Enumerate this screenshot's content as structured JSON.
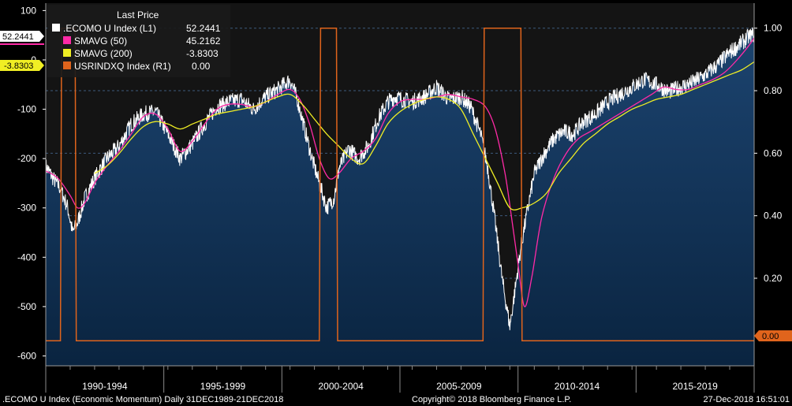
{
  "chart_data": {
    "type": "line",
    "title": "Last Price",
    "xlabel": "",
    "ylabel": "",
    "x_categories": [
      "1990-1994",
      "1995-1999",
      "2000-2004",
      "2005-2009",
      "2010-2014",
      "2015-2019"
    ],
    "x_range": [
      1990.0,
      2019.0
    ],
    "ylim_left": [
      -620,
      115
    ],
    "yticks_left": [
      100,
      0,
      -100,
      -200,
      -300,
      -400,
      -500,
      -600
    ],
    "ytick_labels_left": [
      "100",
      "0",
      "-100",
      "-200",
      "-300",
      "-400",
      "-500",
      "-600"
    ],
    "ylim_right": [
      -0.08,
      1.08
    ],
    "yticks_right": [
      1.0,
      0.8,
      0.6,
      0.4,
      0.2
    ],
    "ytick_labels_right": [
      "1.00",
      "0.80",
      "0.60",
      "0.40",
      "0.20"
    ],
    "series": [
      {
        "name": ".ECOMO U Index  (L1)",
        "last": "52.2441",
        "color": "#ffffff",
        "axis": "left",
        "style": "area",
        "x": [
          1990.0,
          1990.3,
          1990.6,
          1990.9,
          1991.1,
          1991.3,
          1991.6,
          1992.0,
          1992.5,
          1993.0,
          1993.5,
          1994.0,
          1994.5,
          1995.0,
          1995.5,
          1996.0,
          1996.5,
          1997.0,
          1997.5,
          1998.0,
          1998.5,
          1999.0,
          1999.5,
          2000.0,
          2000.3,
          2000.6,
          2000.9,
          2001.2,
          2001.5,
          2001.8,
          2002.0,
          2002.4,
          2002.8,
          2003.2,
          2003.6,
          2004.0,
          2004.3,
          2004.6,
          2005.0,
          2005.5,
          2006.0,
          2006.5,
          2007.0,
          2007.4,
          2007.8,
          2008.1,
          2008.4,
          2008.7,
          2009.0,
          2009.2,
          2009.45,
          2009.7,
          2010.0,
          2010.4,
          2010.8,
          2011.2,
          2011.6,
          2012.0,
          2012.5,
          2013.0,
          2013.5,
          2014.0,
          2014.5,
          2015.0,
          2015.5,
          2016.0,
          2016.5,
          2017.0,
          2017.5,
          2018.0,
          2018.5,
          2018.8,
          2019.0
        ],
        "values": [
          -215,
          -240,
          -260,
          -300,
          -350,
          -330,
          -280,
          -240,
          -200,
          -175,
          -130,
          -110,
          -105,
          -150,
          -200,
          -170,
          -130,
          -95,
          -85,
          -80,
          -100,
          -75,
          -60,
          -40,
          -80,
          -140,
          -200,
          -250,
          -300,
          -280,
          -220,
          -180,
          -200,
          -175,
          -120,
          -85,
          -75,
          -80,
          -85,
          -75,
          -55,
          -80,
          -75,
          -95,
          -150,
          -220,
          -330,
          -450,
          -540,
          -470,
          -380,
          -310,
          -230,
          -190,
          -160,
          -145,
          -150,
          -125,
          -110,
          -85,
          -70,
          -55,
          -40,
          -50,
          -65,
          -55,
          -45,
          -30,
          -10,
          15,
          35,
          48,
          52
        ]
      },
      {
        "name": "SMAVG (50)",
        "last": "45.2162",
        "color": "#ff2aa6",
        "axis": "left",
        "style": "line",
        "x": [
          1990.0,
          1990.5,
          1991.0,
          1991.3,
          1991.6,
          1992.0,
          1992.5,
          1993.0,
          1993.5,
          1994.0,
          1994.5,
          1995.0,
          1995.5,
          1996.0,
          1996.5,
          1997.0,
          1997.5,
          1998.0,
          1998.5,
          1999.0,
          1999.5,
          2000.0,
          2000.4,
          2000.8,
          2001.2,
          2001.6,
          2002.0,
          2002.5,
          2003.0,
          2003.5,
          2004.0,
          2004.5,
          2005.0,
          2005.5,
          2006.0,
          2006.5,
          2007.0,
          2007.5,
          2008.0,
          2008.4,
          2008.8,
          2009.1,
          2009.35,
          2009.6,
          2009.9,
          2010.3,
          2010.8,
          2011.3,
          2011.8,
          2012.3,
          2012.8,
          2013.3,
          2013.8,
          2014.3,
          2014.8,
          2015.3,
          2015.8,
          2016.3,
          2016.8,
          2017.3,
          2017.8,
          2018.3,
          2018.8,
          2019.0
        ],
        "values": [
          -225,
          -240,
          -275,
          -300,
          -290,
          -250,
          -215,
          -185,
          -150,
          -115,
          -110,
          -140,
          -185,
          -165,
          -130,
          -100,
          -90,
          -90,
          -95,
          -85,
          -70,
          -60,
          -80,
          -130,
          -200,
          -240,
          -230,
          -200,
          -185,
          -160,
          -110,
          -85,
          -80,
          -80,
          -75,
          -70,
          -75,
          -80,
          -95,
          -140,
          -230,
          -330,
          -420,
          -500,
          -440,
          -320,
          -240,
          -190,
          -160,
          -145,
          -130,
          -115,
          -100,
          -85,
          -70,
          -55,
          -60,
          -60,
          -50,
          -40,
          -25,
          0,
          30,
          45
        ]
      },
      {
        "name": "SMAVG (200)",
        "last": "-3.8303",
        "color": "#f0ee24",
        "axis": "left",
        "style": "line",
        "x": [
          1992.0,
          1992.5,
          1993.0,
          1993.5,
          1994.0,
          1994.5,
          1995.0,
          1995.5,
          1996.0,
          1996.5,
          1997.0,
          1997.5,
          1998.0,
          1998.5,
          1999.0,
          1999.5,
          2000.0,
          2000.5,
          2001.0,
          2001.5,
          2002.0,
          2002.5,
          2003.0,
          2003.5,
          2004.0,
          2004.5,
          2005.0,
          2005.5,
          2006.0,
          2006.5,
          2007.0,
          2007.5,
          2008.0,
          2008.5,
          2009.0,
          2009.5,
          2010.0,
          2010.5,
          2011.0,
          2011.5,
          2012.0,
          2012.5,
          2013.0,
          2013.5,
          2014.0,
          2014.5,
          2015.0,
          2015.5,
          2016.0,
          2016.5,
          2017.0,
          2017.5,
          2018.0,
          2018.5,
          2019.0
        ],
        "values": [
          -230,
          -215,
          -190,
          -160,
          -135,
          -125,
          -130,
          -140,
          -130,
          -120,
          -110,
          -105,
          -100,
          -95,
          -85,
          -75,
          -70,
          -90,
          -120,
          -150,
          -175,
          -200,
          -210,
          -175,
          -130,
          -105,
          -90,
          -80,
          -75,
          -80,
          -100,
          -150,
          -200,
          -250,
          -300,
          -300,
          -290,
          -270,
          -230,
          -200,
          -170,
          -150,
          -130,
          -115,
          -100,
          -90,
          -80,
          -75,
          -70,
          -60,
          -50,
          -40,
          -30,
          -20,
          -4
        ]
      },
      {
        "name": "USRINDXQ Index  (R1)",
        "last": "0.00",
        "color": "#e0641c",
        "axis": "right",
        "style": "step",
        "x": [
          1990.0,
          1990.6,
          1990.65,
          1991.2,
          1991.25,
          2001.2,
          2001.25,
          2001.9,
          2001.95,
          2007.9,
          2007.95,
          2009.45,
          2009.5,
          2019.0
        ],
        "values": [
          0,
          0,
          1,
          1,
          0,
          0,
          1,
          1,
          0,
          0,
          1,
          1,
          0,
          0
        ]
      }
    ],
    "annotations": [
      "52.2441",
      "-3.8303",
      "0.00"
    ]
  },
  "footer": {
    "left": ".ECOMO U Index (Economic Momentum)  Daily 31DEC1989-21DEC2018",
    "center": "Copyright© 2018 Bloomberg Finance L.P.",
    "right": "27-Dec-2018 16:51:01"
  },
  "colors": {
    "background": "#000000",
    "plot_top": "#121212",
    "area_fill": "#163659",
    "area_fill_bottom": "#0b2745",
    "grid": "#3c5a7c",
    "badge_white_bg": "#ffffff",
    "badge_yellow_bg": "#f0ee24",
    "badge_orange_bg": "#e0641c"
  }
}
